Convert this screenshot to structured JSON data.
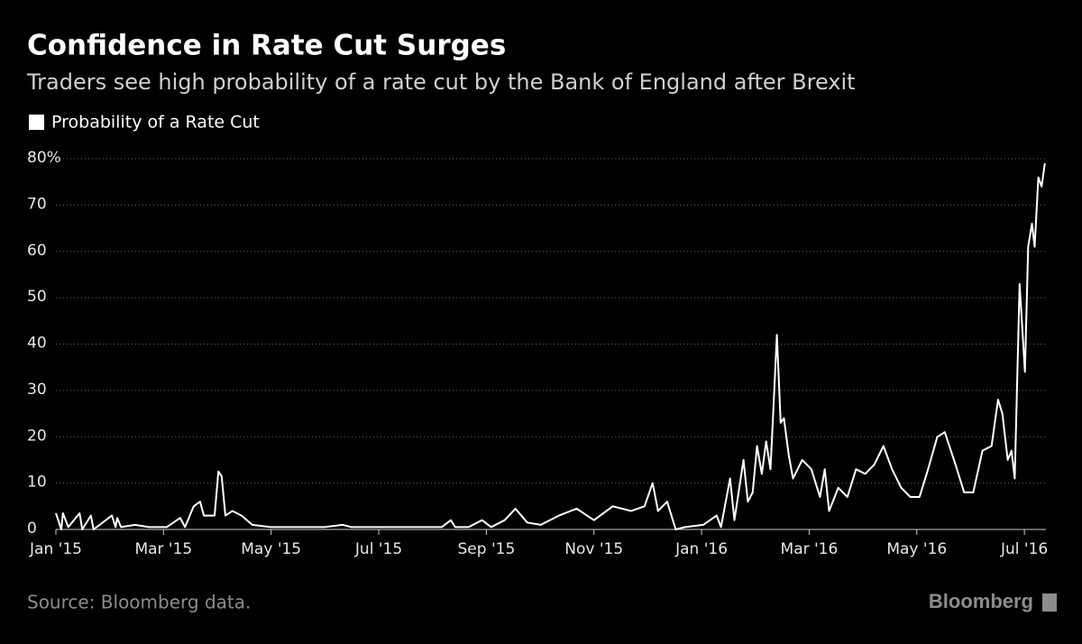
{
  "chart_data": {
    "type": "line",
    "title": "Confidence in Rate Cut Surges",
    "subtitle": "Traders see high probability of a rate cut by the Bank of England after Brexit",
    "source": "Source: Bloomberg data.",
    "brand": "Bloomberg",
    "legend": "top-left",
    "grid": true,
    "x": [
      0,
      0.1,
      0.13,
      0.23,
      0.44,
      0.49,
      0.65,
      0.7,
      1.04,
      1.11,
      1.14,
      1.21,
      1.47,
      1.73,
      2.06,
      2.31,
      2.4,
      2.56,
      2.68,
      2.75,
      2.95,
      3.02,
      3.08,
      3.15,
      3.28,
      3.45,
      3.65,
      3.99,
      4.49,
      4.99,
      5.33,
      5.49,
      6.0,
      6.33,
      6.67,
      7.17,
      7.34,
      7.42,
      7.67,
      7.92,
      8.09,
      8.34,
      8.54,
      8.76,
      9.01,
      9.35,
      9.68,
      10.0,
      10.35,
      10.69,
      10.94,
      11.09,
      11.19,
      11.36,
      11.52,
      11.69,
      12.03,
      12.28,
      12.36,
      12.53,
      12.61,
      12.7,
      12.78,
      12.86,
      12.95,
      13.03,
      13.12,
      13.2,
      13.28,
      13.33,
      13.4,
      13.47,
      13.53,
      13.62,
      13.7,
      13.87,
      14.04,
      14.2,
      14.29,
      14.37,
      14.54,
      14.71,
      14.87,
      15.04,
      15.21,
      15.38,
      15.54,
      15.71,
      15.88,
      16.05,
      16.21,
      16.38,
      16.52,
      16.72,
      16.88,
      17.05,
      17.22,
      17.39,
      17.51,
      17.59,
      17.69,
      17.76,
      17.82,
      17.91,
      18.01,
      18.07,
      18.14,
      18.19,
      18.26,
      18.32,
      18.38
    ],
    "series": [
      {
        "name": "Probability of a Rate Cut",
        "color": "#ffffff",
        "values": [
          3.5,
          0,
          3.5,
          0.5,
          3.5,
          0,
          3,
          0,
          3,
          0.5,
          2.5,
          0.5,
          1,
          0.5,
          0.5,
          2.5,
          0.5,
          5,
          6,
          3,
          3,
          12.5,
          11.5,
          3,
          4,
          3,
          1,
          0.5,
          0.5,
          0.5,
          1,
          0.5,
          0.5,
          0.5,
          0.5,
          0.5,
          2,
          0.5,
          0.5,
          2,
          0.5,
          2,
          4.5,
          1.5,
          1,
          3,
          4.5,
          2,
          5,
          4,
          5,
          10,
          4,
          6,
          0,
          0.5,
          1,
          3,
          0.5,
          11,
          2,
          9,
          15,
          6,
          8,
          18,
          12,
          19,
          13,
          25,
          42,
          23,
          24,
          16,
          11,
          15,
          13,
          7,
          13,
          4,
          9,
          7,
          13,
          12,
          14,
          18,
          13,
          9,
          7,
          7,
          13,
          20,
          21,
          14,
          8,
          8,
          17,
          18,
          28,
          25,
          15,
          17,
          11,
          53,
          34,
          61,
          66,
          61,
          76,
          74,
          79
        ]
      }
    ],
    "xlim": [
      0,
      18.4
    ],
    "xticks": [
      {
        "value": 0,
        "label": "Jan '15"
      },
      {
        "value": 2,
        "label": "Mar '15"
      },
      {
        "value": 4,
        "label": "May '15"
      },
      {
        "value": 6,
        "label": "Jul '15"
      },
      {
        "value": 8,
        "label": "Sep '15"
      },
      {
        "value": 10,
        "label": "Nov '15"
      },
      {
        "value": 12,
        "label": "Jan '16"
      },
      {
        "value": 14,
        "label": "Mar '16"
      },
      {
        "value": 16,
        "label": "May '16"
      },
      {
        "value": 18,
        "label": "Jul '16"
      }
    ],
    "ylim": [
      0,
      80
    ],
    "yticks": [
      0,
      10,
      20,
      30,
      40,
      50,
      60,
      70,
      {
        "value": 80,
        "label": "80%"
      }
    ]
  }
}
